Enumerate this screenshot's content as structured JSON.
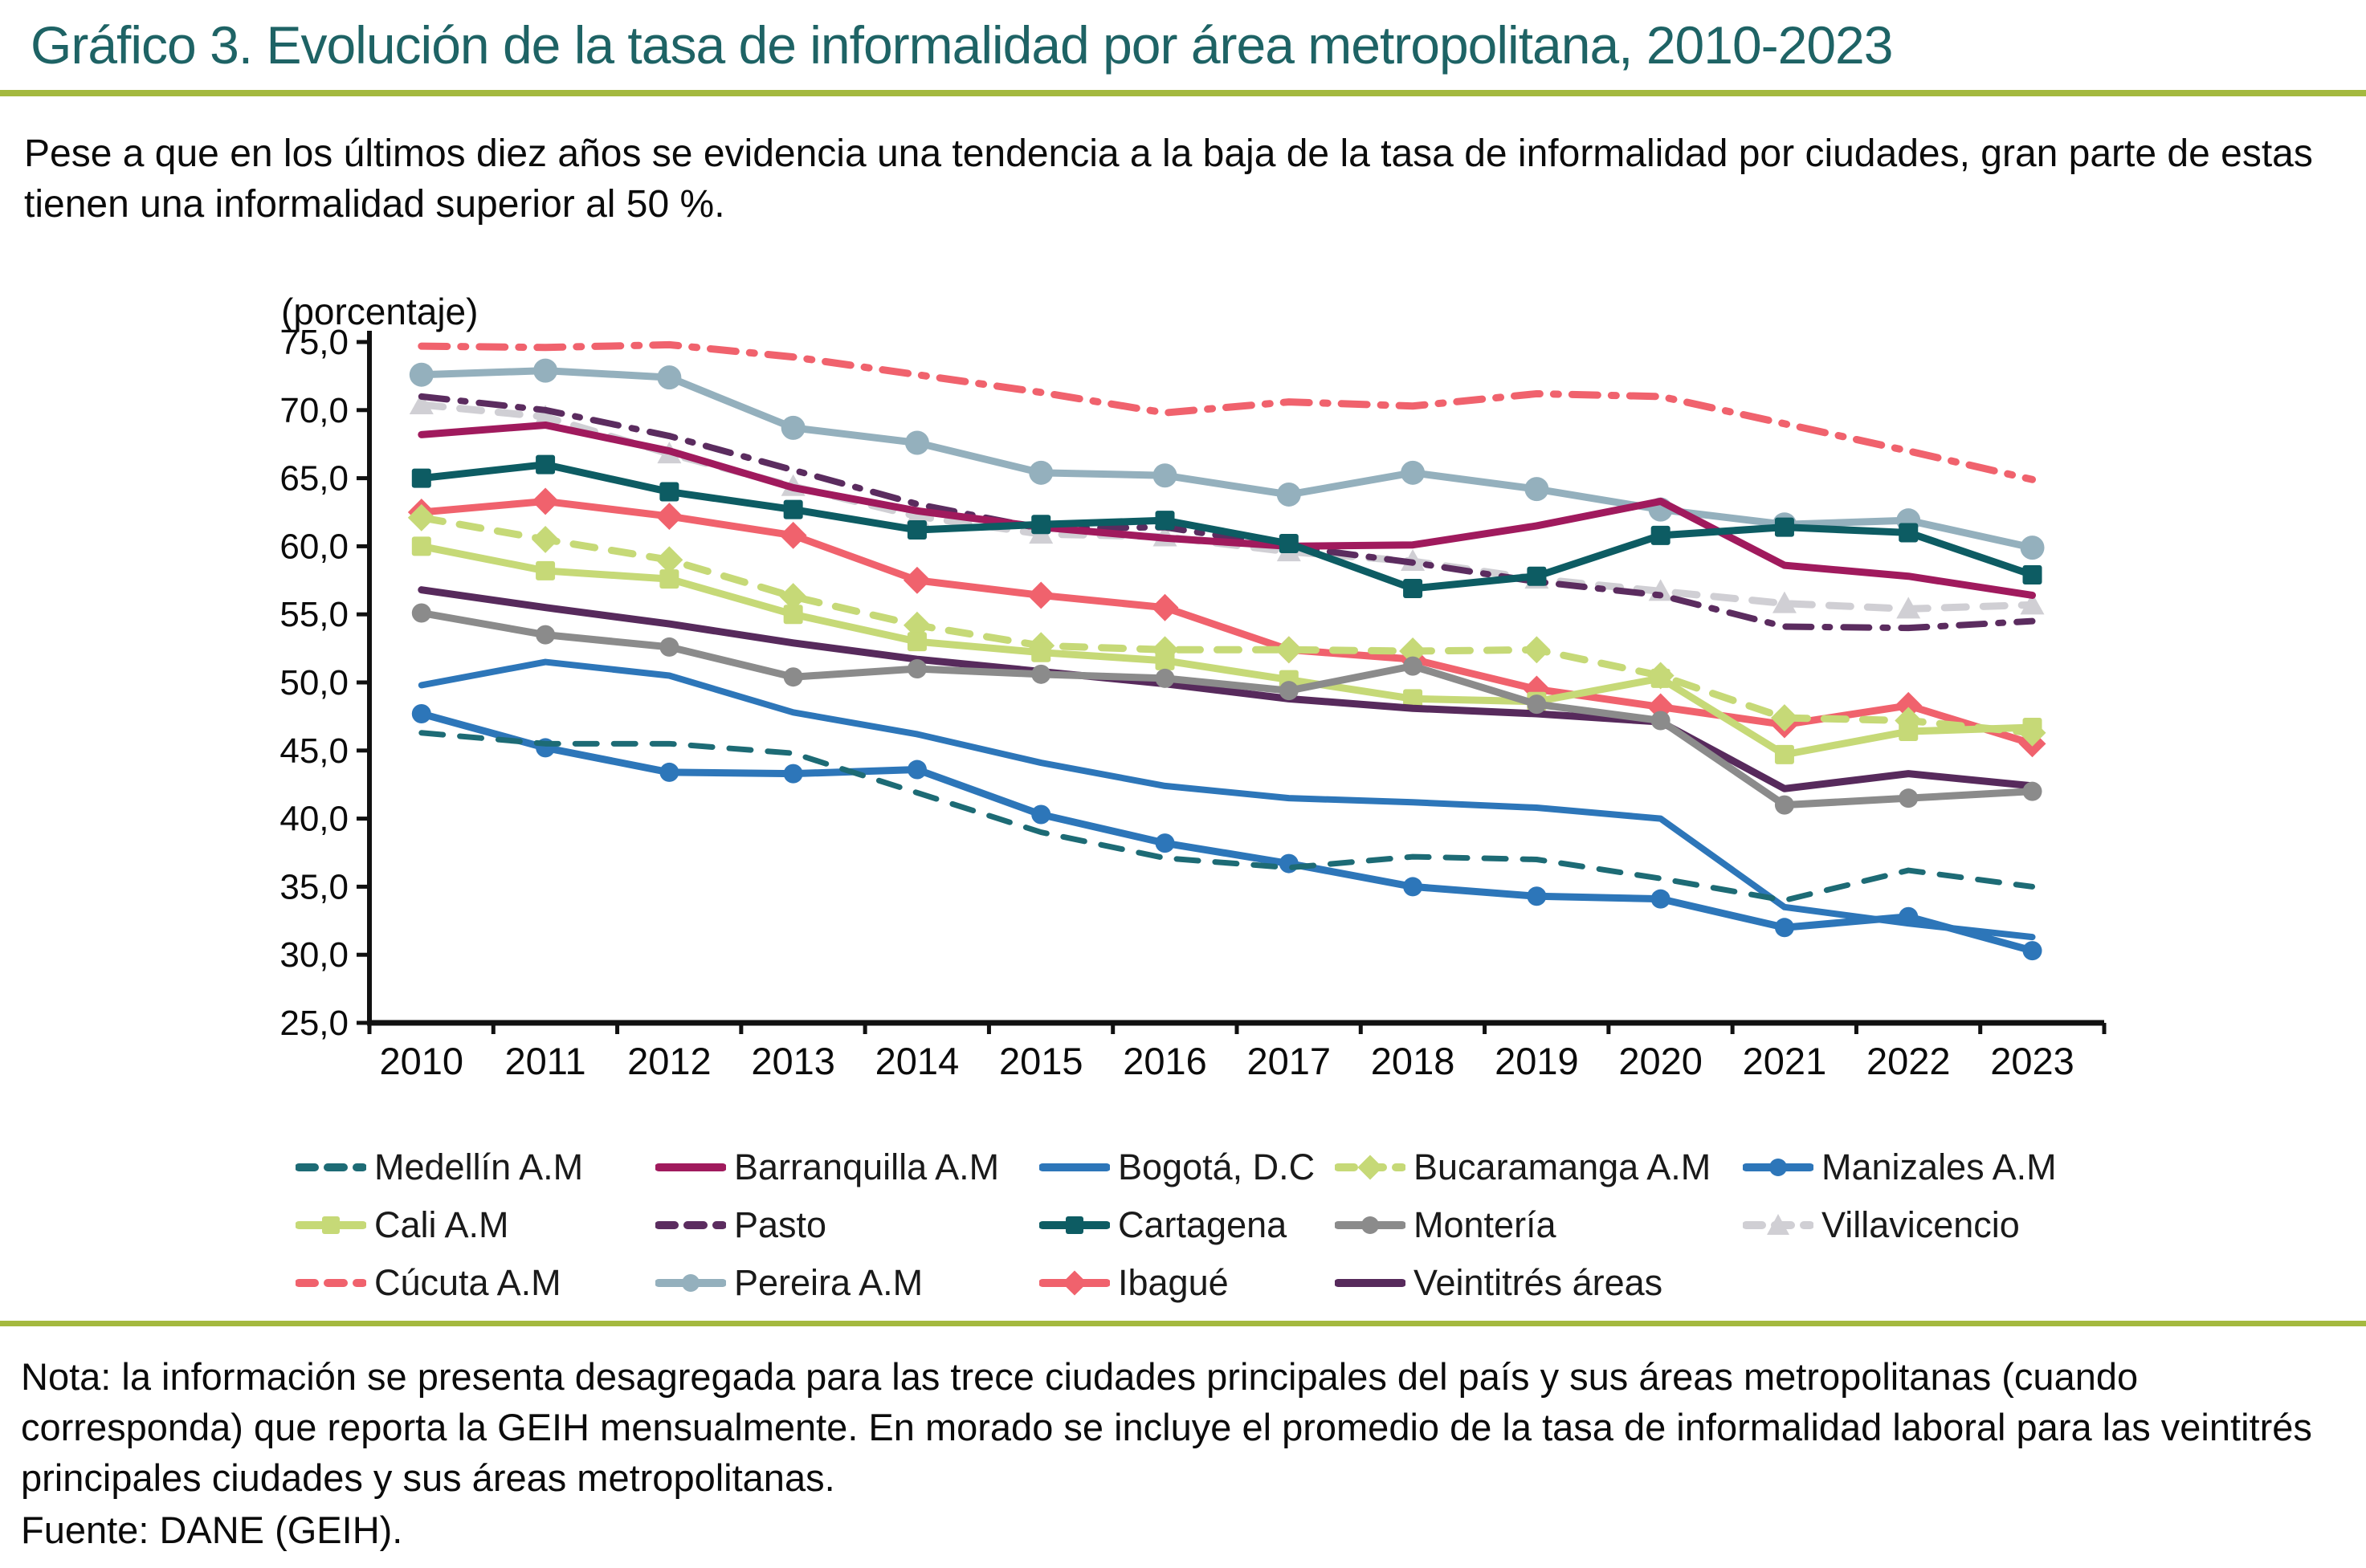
{
  "header": {
    "title": "Gráfico 3. Evolución de la tasa de informalidad por área metropolitana, 2010-2023",
    "intro": "Pese a que en los últimos diez años se evidencia una tendencia a la baja de la tasa de informalidad por ciudades, gran parte de estas tienen una informalidad superior al 50 %."
  },
  "chart_data": {
    "type": "line",
    "unit_label": "(porcentaje)",
    "x": [
      2010,
      2011,
      2012,
      2013,
      2014,
      2015,
      2016,
      2017,
      2018,
      2019,
      2020,
      2021,
      2022,
      2023
    ],
    "ylim": [
      25,
      75
    ],
    "ytick_step": 5,
    "grid": false,
    "legend_position": "bottom",
    "series": [
      {
        "name": "Medellín A.M",
        "color": "#1d6b75",
        "dash": "dashed",
        "marker": "none",
        "width": 7,
        "values": [
          46.3,
          45.5,
          45.5,
          44.8,
          41.9,
          39.0,
          37.1,
          36.4,
          37.2,
          37.0,
          35.6,
          34.0,
          36.2,
          35.0
        ]
      },
      {
        "name": "Barranquilla A.M",
        "color": "#a01a5d",
        "dash": "solid",
        "marker": "none",
        "width": 9,
        "values": [
          68.2,
          68.9,
          67.0,
          64.3,
          62.6,
          61.4,
          60.6,
          60.0,
          60.1,
          61.5,
          63.3,
          58.6,
          57.8,
          56.4
        ]
      },
      {
        "name": "Bogotá, D.C",
        "color": "#2d76b9",
        "dash": "solid",
        "marker": "none",
        "width": 8,
        "values": [
          49.8,
          51.5,
          50.5,
          47.8,
          46.2,
          44.1,
          42.4,
          41.5,
          41.2,
          40.8,
          40.0,
          33.5,
          32.3,
          31.3
        ]
      },
      {
        "name": "Bucaramanga A.M",
        "color": "#c6d977",
        "dash": "dashed",
        "marker": "diamond",
        "width": 9,
        "values": [
          62.1,
          60.5,
          59.0,
          56.3,
          54.2,
          52.7,
          52.4,
          52.4,
          52.3,
          52.4,
          50.5,
          47.4,
          47.2,
          46.3
        ]
      },
      {
        "name": "Manizales A.M",
        "color": "#2d76b9",
        "dash": "solid",
        "marker": "circle",
        "width": 9,
        "values": [
          47.7,
          45.2,
          43.4,
          43.3,
          43.6,
          40.3,
          38.2,
          36.7,
          35.0,
          34.3,
          34.1,
          32.0,
          32.8,
          30.3
        ]
      },
      {
        "name": "Cali A.M",
        "color": "#c6d977",
        "dash": "solid",
        "marker": "square",
        "width": 9,
        "values": [
          60.0,
          58.2,
          57.6,
          55.0,
          53.0,
          52.2,
          51.6,
          50.2,
          48.8,
          48.6,
          50.3,
          44.7,
          46.4,
          46.7
        ]
      },
      {
        "name": "Pasto",
        "color": "#5b2c5f",
        "dash": "dashdot",
        "marker": "none",
        "width": 8,
        "values": [
          71.0,
          70.0,
          68.1,
          65.6,
          63.1,
          61.3,
          61.4,
          60.0,
          58.8,
          57.4,
          56.4,
          54.1,
          54.0,
          54.5
        ]
      },
      {
        "name": "Cartagena",
        "color": "#0d5c63",
        "dash": "solid",
        "marker": "square",
        "width": 9,
        "values": [
          65.0,
          66.0,
          64.0,
          62.7,
          61.2,
          61.6,
          61.9,
          60.2,
          56.9,
          57.8,
          60.8,
          61.4,
          61.0,
          57.9
        ]
      },
      {
        "name": "Montería",
        "color": "#8b8b8b",
        "dash": "solid",
        "marker": "circle",
        "width": 9,
        "values": [
          55.1,
          53.5,
          52.6,
          50.4,
          51.0,
          50.6,
          50.3,
          49.4,
          51.2,
          48.4,
          47.2,
          41.0,
          41.5,
          42.0
        ]
      },
      {
        "name": "Villavicencio",
        "color": "#d0cfd4",
        "dash": "dashed",
        "marker": "triangle",
        "width": 9,
        "values": [
          70.4,
          69.5,
          66.8,
          64.4,
          62.2,
          60.9,
          60.7,
          59.6,
          58.9,
          57.6,
          56.7,
          55.8,
          55.4,
          55.7
        ]
      },
      {
        "name": "Cúcuta A.M",
        "color": "#f0626d",
        "dash": "dashdot",
        "marker": "none",
        "width": 9,
        "values": [
          74.7,
          74.6,
          74.8,
          73.9,
          72.6,
          71.3,
          69.8,
          70.6,
          70.3,
          71.2,
          71.0,
          69.0,
          67.0,
          64.9
        ]
      },
      {
        "name": "Pereira A.M",
        "color": "#94b0bd",
        "dash": "solid",
        "marker": "circle",
        "width": 9,
        "values": [
          72.6,
          72.9,
          72.4,
          68.7,
          67.6,
          65.4,
          65.2,
          63.8,
          65.4,
          64.2,
          62.7,
          61.6,
          61.9,
          59.9
        ]
      },
      {
        "name": "Ibagué",
        "color": "#f0626d",
        "dash": "solid",
        "marker": "diamond",
        "width": 9,
        "values": [
          62.5,
          63.3,
          62.2,
          60.8,
          57.5,
          56.4,
          55.5,
          52.4,
          51.7,
          49.5,
          48.2,
          46.9,
          48.3,
          45.5
        ]
      },
      {
        "name": "Veintitrés áreas",
        "color": "#572a5c",
        "dash": "solid",
        "marker": "none",
        "width": 9,
        "values": [
          56.8,
          55.5,
          54.3,
          52.9,
          51.7,
          50.8,
          49.9,
          48.8,
          48.1,
          47.7,
          47.1,
          42.2,
          43.3,
          42.4
        ]
      }
    ]
  },
  "footer": {
    "note": "Nota: la información se presenta desagregada para las trece ciudades principales del país y sus áreas metropolitanas (cuando corresponda) que reporta la GEIH mensualmente. En morado se incluye el promedio de la tasa de informalidad laboral para las veintitrés principales ciudades y sus áreas metropolitanas.",
    "source": "Fuente: DANE (GEIH)."
  },
  "colors": {
    "accent_teal": "#1e6365",
    "accent_olive": "#a4b93f"
  }
}
